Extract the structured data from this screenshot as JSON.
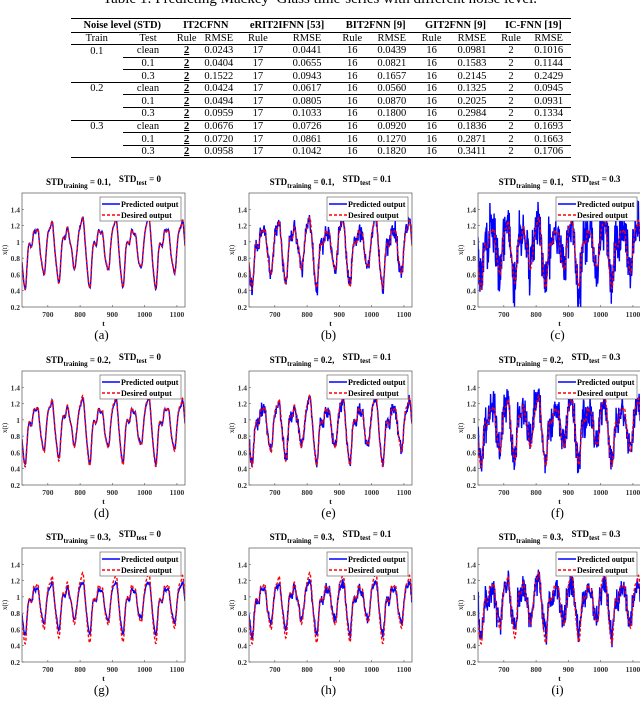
{
  "table": {
    "caption": "Table 1: Predicting Mackey–Glass time-series with different noise level.",
    "group_headers": [
      "Noise level (STD)",
      "IT2CFNN",
      "eRIT2IFNN [53]",
      "BIT2FNN [9]",
      "GIT2FNN [9]",
      "IC-FNN [19]"
    ],
    "sub_headers": [
      "Train",
      "Test",
      "Rule",
      "RMSE",
      "Rule",
      "RMSE",
      "Rule",
      "RMSE",
      "Rule",
      "RMSE",
      "Rule",
      "RMSE"
    ],
    "rows": [
      [
        "0.1",
        "clean",
        "2",
        "0.0243",
        "17",
        "0.0441",
        "16",
        "0.0439",
        "16",
        "0.0981",
        "2",
        "0.1016"
      ],
      [
        "",
        "0.1",
        "2",
        "0.0404",
        "17",
        "0.0655",
        "16",
        "0.0821",
        "16",
        "0.1583",
        "2",
        "0.1144"
      ],
      [
        "",
        "0.3",
        "2",
        "0.1522",
        "17",
        "0.0943",
        "16",
        "0.1657",
        "16",
        "0.2145",
        "2",
        "0.2429"
      ],
      [
        "0.2",
        "clean",
        "2",
        "0.0424",
        "17",
        "0.0617",
        "16",
        "0.0560",
        "16",
        "0.1325",
        "2",
        "0.0945"
      ],
      [
        "",
        "0.1",
        "2",
        "0.0494",
        "17",
        "0.0805",
        "16",
        "0.0870",
        "16",
        "0.2025",
        "2",
        "0.0931"
      ],
      [
        "",
        "0.3",
        "2",
        "0.0959",
        "17",
        "0.1033",
        "16",
        "0.1800",
        "16",
        "0.2984",
        "2",
        "0.1334"
      ],
      [
        "0.3",
        "clean",
        "2",
        "0.0676",
        "17",
        "0.0726",
        "16",
        "0.0920",
        "16",
        "0.1836",
        "2",
        "0.1693"
      ],
      [
        "",
        "0.1",
        "2",
        "0.0720",
        "17",
        "0.0861",
        "16",
        "0.1270",
        "16",
        "0.2871",
        "2",
        "0.1663"
      ],
      [
        "",
        "0.3",
        "2",
        "0.0958",
        "17",
        "0.1042",
        "16",
        "0.1820",
        "16",
        "0.3411",
        "2",
        "0.1706"
      ]
    ]
  },
  "chart_data": [
    {
      "type": "line",
      "caption": "(a)",
      "title": {
        "std": "STD",
        "sub_train": "training",
        "train_text": " = 0.1,",
        "sub_test": "test",
        "test_text": " = 0"
      },
      "std_training": 0.1,
      "std_test": 0,
      "xlabel": "t",
      "ylabel": "x(t)",
      "xlim": [
        620,
        1125
      ],
      "ylim": [
        0.2,
        1.6
      ],
      "xticks": [
        "700",
        "800",
        "900",
        "1000",
        "1100"
      ],
      "yticks": [
        "0.2",
        "0.4",
        "0.6",
        "0.8",
        "1",
        "1.2",
        "1.4"
      ],
      "legend": [
        "Predicted output",
        "Desired output"
      ],
      "legend_position": "top-right",
      "grid": false
    },
    {
      "type": "line",
      "caption": "(b)",
      "title": {
        "std": "STD",
        "sub_train": "training",
        "train_text": " = 0.1,",
        "sub_test": "test",
        "test_text": " = 0.1"
      },
      "std_training": 0.1,
      "std_test": 0.1,
      "xlabel": "t",
      "ylabel": "x(t)",
      "xlim": [
        620,
        1125
      ],
      "ylim": [
        0.2,
        1.6
      ],
      "xticks": [
        "700",
        "800",
        "900",
        "1000",
        "1100"
      ],
      "yticks": [
        "0.2",
        "0.4",
        "0.6",
        "0.8",
        "1",
        "1.2",
        "1.4"
      ],
      "legend": [
        "Predicted output",
        "Desired output"
      ],
      "legend_position": "top-right",
      "grid": false
    },
    {
      "type": "line",
      "caption": "(c)",
      "title": {
        "std": "STD",
        "sub_train": "training",
        "train_text": " = 0.1,",
        "sub_test": "test",
        "test_text": " = 0.3"
      },
      "std_training": 0.1,
      "std_test": 0.3,
      "xlabel": "t",
      "ylabel": "x(t)",
      "xlim": [
        620,
        1125
      ],
      "ylim": [
        0.2,
        1.6
      ],
      "xticks": [
        "700",
        "800",
        "900",
        "1000",
        "1100"
      ],
      "yticks": [
        "0.2",
        "0.4",
        "0.6",
        "0.8",
        "1",
        "1.2",
        "1.4"
      ],
      "legend": [
        "Predicted output",
        "Desired output"
      ],
      "legend_position": "top-right",
      "grid": false
    },
    {
      "type": "line",
      "caption": "(d)",
      "title": {
        "std": "STD",
        "sub_train": "training",
        "train_text": " = 0.2,",
        "sub_test": "test",
        "test_text": " = 0"
      },
      "std_training": 0.2,
      "std_test": 0,
      "xlabel": "t",
      "ylabel": "x(t)",
      "xlim": [
        620,
        1125
      ],
      "ylim": [
        0.2,
        1.6
      ],
      "xticks": [
        "700",
        "800",
        "900",
        "1000",
        "1100"
      ],
      "yticks": [
        "0.2",
        "0.4",
        "0.6",
        "0.8",
        "1",
        "1.2",
        "1.4"
      ],
      "legend": [
        "Predicted output",
        "Desired output"
      ],
      "legend_position": "top-right",
      "grid": false
    },
    {
      "type": "line",
      "caption": "(e)",
      "title": {
        "std": "STD",
        "sub_train": "training",
        "train_text": " = 0.2,",
        "sub_test": "test",
        "test_text": " = 0.1"
      },
      "std_training": 0.2,
      "std_test": 0.1,
      "xlabel": "t",
      "ylabel": "x(t)",
      "xlim": [
        620,
        1125
      ],
      "ylim": [
        0.2,
        1.6
      ],
      "xticks": [
        "700",
        "800",
        "900",
        "1000",
        "1100"
      ],
      "yticks": [
        "0.2",
        "0.4",
        "0.6",
        "0.8",
        "1",
        "1.2",
        "1.4"
      ],
      "legend": [
        "Predicted output",
        "Desired output"
      ],
      "legend_position": "top-right",
      "grid": false
    },
    {
      "type": "line",
      "caption": "(f)",
      "title": {
        "std": "STD",
        "sub_train": "training",
        "train_text": " = 0.2,",
        "sub_test": "test",
        "test_text": " = 0.3"
      },
      "std_training": 0.2,
      "std_test": 0.3,
      "xlabel": "t",
      "ylabel": "x(t)",
      "xlim": [
        620,
        1125
      ],
      "ylim": [
        0.2,
        1.6
      ],
      "xticks": [
        "700",
        "800",
        "900",
        "1000",
        "1100"
      ],
      "yticks": [
        "0.2",
        "0.4",
        "0.6",
        "0.8",
        "1",
        "1.2",
        "1.4"
      ],
      "legend": [
        "Predicted output",
        "Desired output"
      ],
      "legend_position": "top-right",
      "grid": false
    },
    {
      "type": "line",
      "caption": "(g)",
      "title": {
        "std": "STD",
        "sub_train": "training",
        "train_text": " = 0.3,",
        "sub_test": "test",
        "test_text": " = 0"
      },
      "std_training": 0.3,
      "std_test": 0,
      "xlabel": "t",
      "ylabel": "x(t)",
      "xlim": [
        620,
        1125
      ],
      "ylim": [
        0.2,
        1.6
      ],
      "xticks": [
        "700",
        "800",
        "900",
        "1000",
        "1100"
      ],
      "yticks": [
        "0.2",
        "0.4",
        "0.6",
        "0.8",
        "1",
        "1.2",
        "1.4"
      ],
      "legend": [
        "Predicted output",
        "Desired output"
      ],
      "legend_position": "top-right",
      "grid": false
    },
    {
      "type": "line",
      "caption": "(h)",
      "title": {
        "std": "STD",
        "sub_train": "training",
        "train_text": " = 0.3,",
        "sub_test": "test",
        "test_text": " = 0.1"
      },
      "std_training": 0.3,
      "std_test": 0.1,
      "xlabel": "t",
      "ylabel": "x(t)",
      "xlim": [
        620,
        1125
      ],
      "ylim": [
        0.2,
        1.6
      ],
      "xticks": [
        "700",
        "800",
        "900",
        "1000",
        "1100"
      ],
      "yticks": [
        "0.2",
        "0.4",
        "0.6",
        "0.8",
        "1",
        "1.2",
        "1.4"
      ],
      "legend": [
        "Predicted output",
        "Desired output"
      ],
      "legend_position": "top-right",
      "grid": false
    },
    {
      "type": "line",
      "caption": "(i)",
      "title": {
        "std": "STD",
        "sub_train": "training",
        "train_text": " = 0.3,",
        "sub_test": "test",
        "test_text": " = 0.3"
      },
      "std_training": 0.3,
      "std_test": 0.3,
      "xlabel": "t",
      "ylabel": "x(t)",
      "xlim": [
        620,
        1125
      ],
      "ylim": [
        0.2,
        1.6
      ],
      "xticks": [
        "700",
        "800",
        "900",
        "1000",
        "1100"
      ],
      "yticks": [
        "0.2",
        "0.4",
        "0.6",
        "0.8",
        "1",
        "1.2",
        "1.4"
      ],
      "legend": [
        "Predicted output",
        "Desired output"
      ],
      "legend_position": "top-right",
      "grid": false
    }
  ],
  "colors": {
    "predicted": "#0000ff",
    "desired": "#ff0000"
  }
}
